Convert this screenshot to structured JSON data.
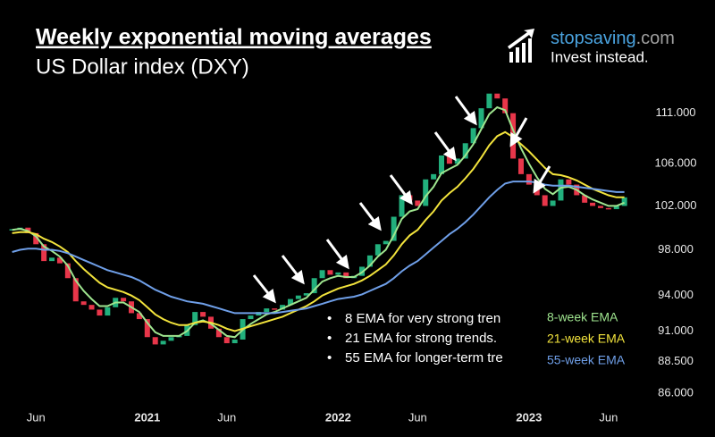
{
  "header": {
    "title": "Weekly exponential moving averages",
    "subtitle": "US Dollar index (DXY)"
  },
  "logo": {
    "name": "stopsaving",
    "domain": ".com",
    "tagline": "Invest instead."
  },
  "notes": [
    "8 EMA for very strong tren",
    "21 EMA for strong trends.",
    "55 EMA for longer-term tre"
  ],
  "chart_data": {
    "type": "candlestick",
    "ylog": true,
    "ylim": [
      84.6,
      115.3
    ],
    "yticks": [
      {
        "value": 111,
        "label": "111.000"
      },
      {
        "value": 106,
        "label": "106.000"
      },
      {
        "value": 102,
        "label": "102.000"
      },
      {
        "value": 98,
        "label": "98.000"
      },
      {
        "value": 94,
        "label": "94.000"
      },
      {
        "value": 91,
        "label": "91.000"
      },
      {
        "value": 88.5,
        "label": "88.500"
      },
      {
        "value": 86,
        "label": "86.000"
      }
    ],
    "xlim": [
      3.3,
      43.2
    ],
    "xticks": [
      {
        "value": 5,
        "label": "Jun"
      },
      {
        "value": 12,
        "label": "2021"
      },
      {
        "value": 17,
        "label": "Jun"
      },
      {
        "value": 24,
        "label": "2022"
      },
      {
        "value": 29,
        "label": "Jun"
      },
      {
        "value": 36,
        "label": "2023"
      },
      {
        "value": 41,
        "label": "Jun"
      }
    ],
    "up_color": "#22b07d",
    "down_color": "#e8364a",
    "x": [
      3.5,
      4,
      4.5,
      5,
      5.5,
      6,
      6.5,
      7,
      7.5,
      8,
      8.5,
      9,
      9.5,
      10,
      10.5,
      11,
      11.5,
      12,
      12.5,
      13,
      13.5,
      14,
      14.5,
      15,
      15.5,
      16,
      16.5,
      17,
      17.5,
      18,
      18.5,
      19,
      19.5,
      20,
      20.5,
      21,
      21.5,
      22,
      22.5,
      23,
      23.5,
      24,
      24.5,
      25,
      25.5,
      26,
      26.5,
      27,
      27.5,
      28,
      28.5,
      29,
      29.5,
      30,
      30.5,
      31,
      31.5,
      32,
      32.5,
      33,
      33.5,
      34,
      34.5,
      35,
      35.5,
      36,
      36.5,
      37,
      37.5,
      38,
      38.5,
      39,
      39.5,
      40,
      40.5,
      41,
      41.5,
      42
    ],
    "close": [
      99.8,
      100.0,
      99.5,
      98.5,
      97.0,
      97.3,
      96.8,
      95.5,
      93.5,
      93.2,
      92.8,
      92.3,
      93.0,
      93.8,
      93.5,
      92.5,
      92.0,
      90.5,
      89.9,
      90.2,
      90.5,
      90.6,
      91.5,
      92.6,
      92.2,
      91.2,
      90.5,
      90.0,
      90.3,
      92.0,
      92.3,
      92.6,
      92.9,
      92.8,
      93.2,
      93.7,
      94.0,
      94.2,
      95.5,
      96.2,
      95.8,
      96.0,
      95.5,
      95.7,
      96.5,
      97.5,
      98.5,
      98.8,
      101.0,
      103.0,
      102.5,
      102.0,
      104.5,
      105.0,
      106.8,
      106.0,
      106.5,
      108.0,
      109.5,
      111.5,
      113.0,
      112.5,
      111.0,
      106.5,
      105.0,
      104.0,
      103.0,
      102.0,
      102.5,
      104.5,
      104.0,
      103.0,
      102.3,
      102.0,
      101.8,
      101.7,
      102.0,
      102.8
    ],
    "series": [
      {
        "name": "8-week EMA",
        "color": "#9fe58f",
        "values": [
          99.8,
          99.9,
          99.7,
          99.2,
          98.3,
          97.9,
          97.4,
          96.6,
          95.3,
          94.4,
          93.7,
          93.1,
          93.1,
          93.4,
          93.4,
          93.0,
          92.6,
          91.7,
          90.9,
          90.6,
          90.6,
          90.6,
          91.0,
          91.7,
          91.9,
          91.6,
          91.1,
          90.6,
          90.5,
          91.1,
          91.6,
          92.0,
          92.4,
          92.6,
          92.9,
          93.2,
          93.5,
          93.8,
          94.5,
          95.2,
          95.5,
          95.7,
          95.6,
          95.6,
          96.0,
          96.6,
          97.4,
          98.0,
          99.3,
          100.8,
          101.5,
          101.7,
          102.9,
          103.8,
          105.1,
          105.5,
          105.9,
          106.8,
          107.9,
          109.4,
          110.9,
          111.6,
          111.3,
          109.3,
          107.5,
          106.0,
          104.7,
          103.6,
          103.1,
          103.7,
          103.8,
          103.5,
          103.0,
          102.6,
          102.3,
          102.0,
          102.0,
          102.3
        ]
      },
      {
        "name": "21-week EMA",
        "color": "#f2e33c",
        "values": [
          99.5,
          99.6,
          99.6,
          99.4,
          99.0,
          98.7,
          98.3,
          97.8,
          97.0,
          96.3,
          95.7,
          95.1,
          94.7,
          94.5,
          94.3,
          94.0,
          93.6,
          93.0,
          92.4,
          92.0,
          91.7,
          91.5,
          91.5,
          91.7,
          91.8,
          91.7,
          91.5,
          91.2,
          91.0,
          91.2,
          91.4,
          91.6,
          91.8,
          92.0,
          92.2,
          92.5,
          92.8,
          93.1,
          93.5,
          94.0,
          94.3,
          94.6,
          94.8,
          95.0,
          95.3,
          95.7,
          96.2,
          96.7,
          97.5,
          98.5,
          99.3,
          99.8,
          100.7,
          101.5,
          102.5,
          103.2,
          103.8,
          104.6,
          105.5,
          106.6,
          107.8,
          108.7,
          109.1,
          108.6,
          107.9,
          107.2,
          106.4,
          105.6,
          105.0,
          104.9,
          104.7,
          104.4,
          104.0,
          103.6,
          103.3,
          103.0,
          102.8,
          102.8
        ]
      },
      {
        "name": "55-week EMA",
        "color": "#6f9fe8",
        "values": [
          97.8,
          98.0,
          98.1,
          98.1,
          98.0,
          98.0,
          97.9,
          97.7,
          97.4,
          97.1,
          96.8,
          96.5,
          96.2,
          96.0,
          95.8,
          95.6,
          95.3,
          94.9,
          94.5,
          94.2,
          93.9,
          93.7,
          93.5,
          93.4,
          93.3,
          93.1,
          92.9,
          92.7,
          92.5,
          92.5,
          92.5,
          92.5,
          92.5,
          92.5,
          92.6,
          92.7,
          92.8,
          92.9,
          93.1,
          93.3,
          93.5,
          93.7,
          93.8,
          93.9,
          94.1,
          94.4,
          94.7,
          95.0,
          95.5,
          96.1,
          96.6,
          97.0,
          97.6,
          98.2,
          98.8,
          99.4,
          99.9,
          100.5,
          101.2,
          102.0,
          102.8,
          103.5,
          104.1,
          104.3,
          104.3,
          104.3,
          104.2,
          104.0,
          103.9,
          103.9,
          103.9,
          103.8,
          103.7,
          103.6,
          103.5,
          103.4,
          103.3,
          103.3
        ]
      }
    ]
  }
}
